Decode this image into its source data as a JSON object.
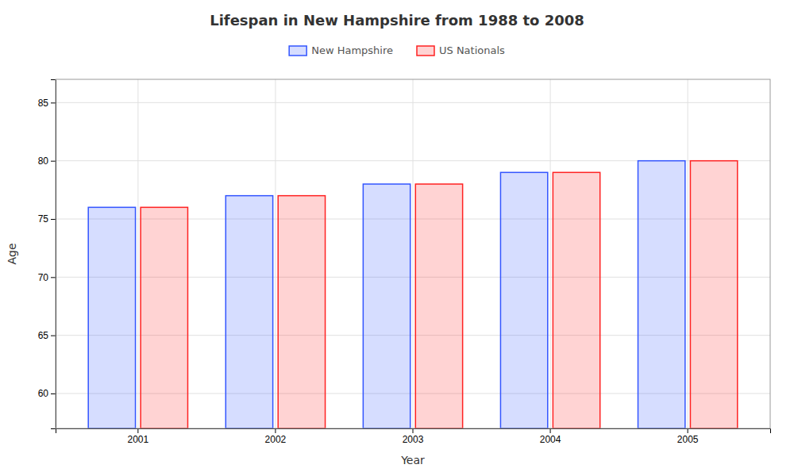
{
  "chart_data": {
    "type": "bar",
    "title": "Lifespan in New Hampshire from 1988 to 2008",
    "x_label": "Year",
    "y_label": "Age",
    "categories": [
      2001,
      2002,
      2003,
      2004,
      2005
    ],
    "series": [
      {
        "name": "New Hampshire",
        "color": "#3355ff",
        "values": [
          76,
          77,
          78,
          79,
          80
        ]
      },
      {
        "name": "US Nationals",
        "color": "#ff2222",
        "values": [
          76,
          77,
          78,
          79,
          80
        ]
      }
    ],
    "ylim": [
      57,
      87
    ],
    "yticks": [
      60,
      65,
      70,
      75,
      80,
      85
    ],
    "grid": true,
    "legend": "top"
  }
}
